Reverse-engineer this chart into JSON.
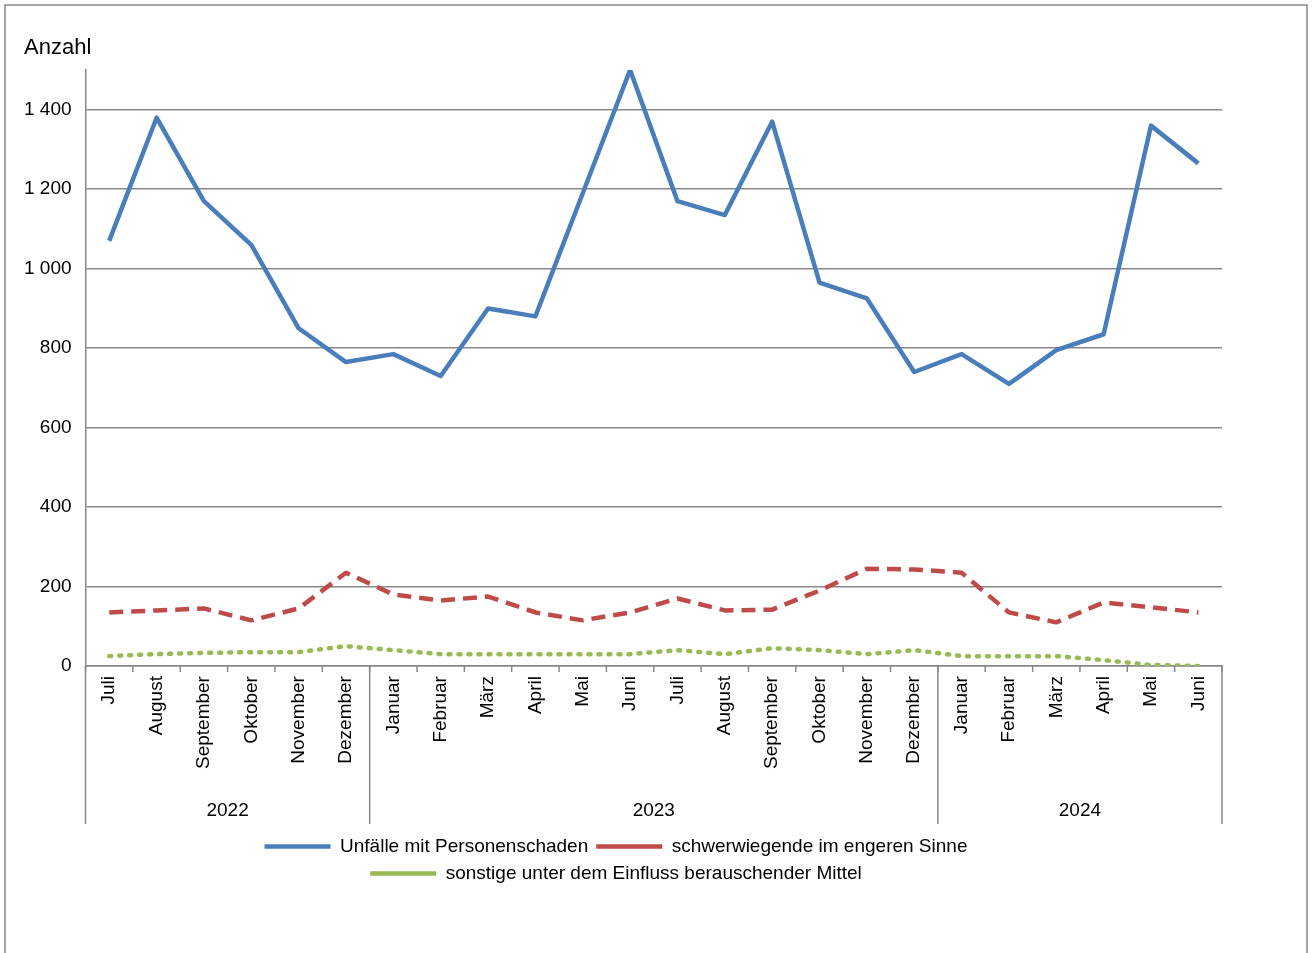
{
  "chart_data": {
    "type": "line",
    "ylabel": "Anzahl",
    "categories": [
      "Juli",
      "August",
      "September",
      "Oktober",
      "November",
      "Dezember",
      "Januar",
      "Februar",
      "März",
      "April",
      "Mai",
      "Juni",
      "Juli",
      "August",
      "September",
      "Oktober",
      "November",
      "Dezember",
      "Januar",
      "Februar",
      "März",
      "April",
      "Mai",
      "Juni"
    ],
    "annotations": [
      "2022",
      "2023",
      "2024"
    ],
    "ylim": [
      0,
      1500
    ],
    "yticks": [
      0,
      200,
      400,
      600,
      800,
      {
        "value": 1000,
        "label": "1 000"
      },
      {
        "value": 1200,
        "label": "1 200"
      },
      {
        "value": 1400,
        "label": "1 400"
      }
    ],
    "grid": "y",
    "legend": "bottom",
    "marker": "none",
    "series": [
      {
        "name": "Unfälle mit Personenschaden",
        "color": "#4a7ebb",
        "line_style": "solid",
        "values": [
          1070,
          1380,
          1170,
          1060,
          850,
          765,
          785,
          730,
          900,
          880,
          1190,
          1500,
          1170,
          1135,
          1370,
          965,
          925,
          740,
          785,
          710,
          795,
          835,
          1360,
          1265
        ]
      },
      {
        "name": "schwerwiegende im engeren Sinne",
        "color": "#be4b48",
        "line_style": "dashed",
        "values": [
          135,
          140,
          145,
          115,
          145,
          235,
          180,
          165,
          175,
          135,
          115,
          135,
          170,
          140,
          142,
          190,
          245,
          243,
          235,
          135,
          110,
          160,
          148,
          135
        ]
      },
      {
        "name": "sonstige unter dem Einfluss berauschender Mittel",
        "color": "#98b954",
        "line_style": "dotted",
        "values": [
          25,
          30,
          33,
          35,
          35,
          50,
          40,
          30,
          30,
          30,
          30,
          30,
          40,
          30,
          45,
          40,
          30,
          40,
          25,
          25,
          25,
          15,
          3,
          0
        ]
      }
    ]
  }
}
